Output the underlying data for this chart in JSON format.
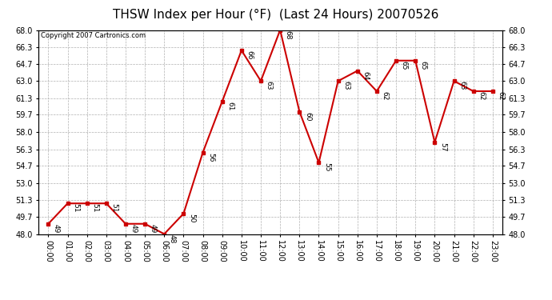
{
  "title": "THSW Index per Hour (°F)  (Last 24 Hours) 20070526",
  "copyright": "Copyright 2007 Cartronics.com",
  "hours": [
    "00:00",
    "01:00",
    "02:00",
    "03:00",
    "04:00",
    "05:00",
    "06:00",
    "07:00",
    "08:00",
    "09:00",
    "10:00",
    "11:00",
    "12:00",
    "13:00",
    "14:00",
    "15:00",
    "16:00",
    "17:00",
    "18:00",
    "19:00",
    "20:00",
    "21:00",
    "22:00",
    "23:00"
  ],
  "values": [
    49,
    51,
    51,
    51,
    49,
    49,
    48,
    50,
    56,
    61,
    66,
    63,
    68,
    60,
    55,
    63,
    64,
    62,
    65,
    65,
    57,
    63,
    62,
    62
  ],
  "ylim_min": 48.0,
  "ylim_max": 68.0,
  "yticks": [
    48.0,
    49.7,
    51.3,
    53.0,
    54.7,
    56.3,
    58.0,
    59.7,
    61.3,
    63.0,
    64.7,
    66.3,
    68.0
  ],
  "line_color": "#cc0000",
  "marker_color": "#cc0000",
  "bg_color": "#ffffff",
  "plot_bg_color": "#ffffff",
  "grid_color": "#b0b0b0",
  "title_fontsize": 11,
  "tick_fontsize": 7,
  "label_fontsize": 6.5,
  "copyright_fontsize": 6
}
